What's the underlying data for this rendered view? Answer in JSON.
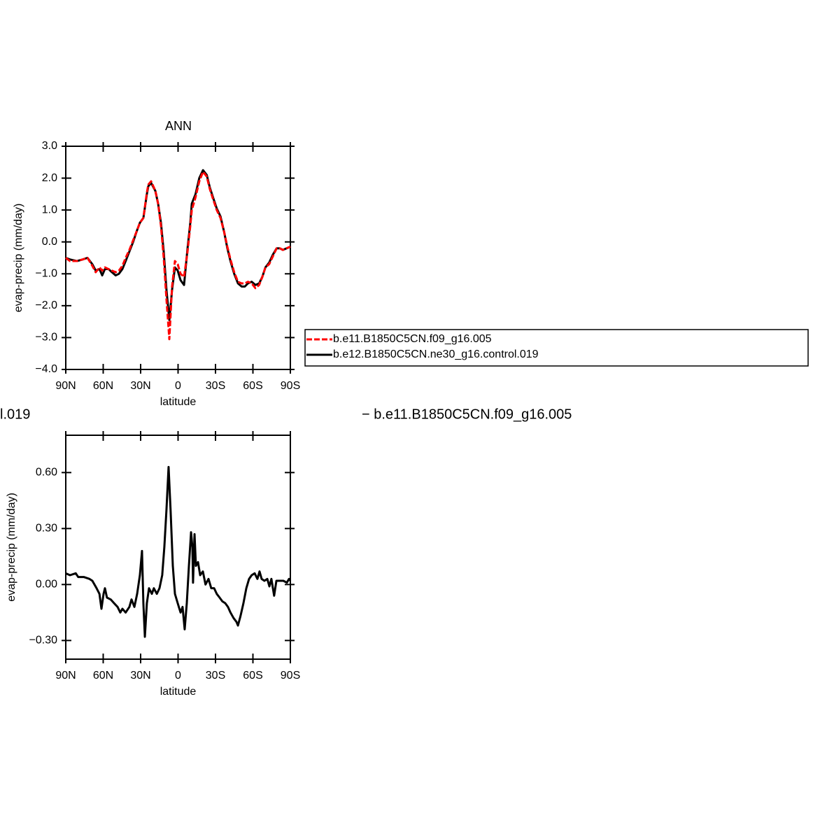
{
  "chart_data": [
    {
      "type": "line",
      "title": "ANN",
      "xlabel": "latitude",
      "ylabel": "evap-precip (mm/day)",
      "xlim": [
        90,
        -90
      ],
      "xticks": [
        {
          "value": 90,
          "label": "90N"
        },
        {
          "value": 60,
          "label": "60N"
        },
        {
          "value": 30,
          "label": "30N"
        },
        0,
        {
          "value": -30,
          "label": "30S"
        },
        {
          "value": -60,
          "label": "60S"
        },
        {
          "value": -90,
          "label": "90S"
        }
      ],
      "ylim": [
        -4,
        3
      ],
      "yticks": [
        {
          "value": 3,
          "label": "3.0"
        },
        {
          "value": 2,
          "label": "2.0"
        },
        {
          "value": 1,
          "label": "1.0"
        },
        {
          "value": 0,
          "label": "0.0"
        },
        {
          "value": -1,
          "label": "−1.0"
        },
        {
          "value": -2,
          "label": "−2.0"
        },
        {
          "value": -3,
          "label": "−3.0"
        },
        {
          "value": -4,
          "label": "−4.0"
        }
      ],
      "x": [
        90,
        86.6,
        81,
        76.5,
        72.6,
        68.7,
        66,
        63,
        60.8,
        58.6,
        55.8,
        53,
        50,
        47.4,
        44.6,
        42,
        39,
        36,
        33,
        30.6,
        27.8,
        25,
        23.8,
        21.6,
        18.2,
        16,
        13.7,
        11.5,
        9.3,
        7,
        4.8,
        2.5,
        0.3,
        -2,
        -4.8,
        -7.6,
        -9.8,
        -11,
        -14,
        -17,
        -20,
        -23,
        -25.5,
        -28,
        -31,
        -34,
        -37,
        -39.5,
        -42,
        -45,
        -48,
        -51,
        -53.5,
        -56,
        -59,
        -62,
        -65,
        -67.5,
        -70,
        -73,
        -76,
        -79,
        -81.5,
        -84,
        -87,
        -90
      ],
      "series": [
        {
          "name": "b.e11.B1850C5CN.f09_g16.005",
          "color": "#ff0000",
          "dash": "dashed",
          "values": [
            -0.5,
            -0.6,
            -0.6,
            -0.55,
            -0.5,
            -0.75,
            -0.95,
            -0.8,
            -0.9,
            -0.8,
            -0.85,
            -0.9,
            -0.95,
            -0.9,
            -0.75,
            -0.5,
            -0.25,
            0.05,
            0.35,
            0.6,
            0.75,
            1.55,
            1.8,
            1.9,
            1.6,
            1.2,
            0.5,
            -0.5,
            -1.8,
            -3.05,
            -1.4,
            -0.6,
            -0.7,
            -1.0,
            -1.1,
            -0.3,
            0.5,
            1.0,
            1.4,
            1.9,
            2.2,
            2.05,
            1.65,
            1.35,
            1.0,
            0.75,
            0.3,
            -0.15,
            -0.55,
            -0.95,
            -1.25,
            -1.3,
            -1.3,
            -1.25,
            -1.3,
            -1.45,
            -1.35,
            -1.1,
            -0.8,
            -0.7,
            -0.45,
            -0.2,
            -0.2,
            -0.25,
            -0.2,
            -0.15
          ]
        },
        {
          "name": "b.e12.B1850C5CN.ne30_g16.control.019",
          "color": "#000000",
          "values": [
            -0.5,
            -0.55,
            -0.6,
            -0.55,
            -0.5,
            -0.7,
            -0.9,
            -0.85,
            -1.05,
            -0.85,
            -0.85,
            -0.95,
            -1.05,
            -1.0,
            -0.85,
            -0.6,
            -0.3,
            0.0,
            0.35,
            0.6,
            0.75,
            1.5,
            1.75,
            1.85,
            1.6,
            1.2,
            0.6,
            -0.3,
            -1.5,
            -2.45,
            -1.5,
            -0.8,
            -0.9,
            -1.2,
            -1.35,
            -0.2,
            0.6,
            1.2,
            1.5,
            2.0,
            2.25,
            2.1,
            1.7,
            1.4,
            1.05,
            0.8,
            0.3,
            -0.2,
            -0.6,
            -1.0,
            -1.3,
            -1.4,
            -1.4,
            -1.3,
            -1.25,
            -1.35,
            -1.3,
            -1.1,
            -0.8,
            -0.65,
            -0.4,
            -0.2,
            -0.2,
            -0.25,
            -0.2,
            -0.15
          ]
        }
      ]
    },
    {
      "type": "line",
      "xlabel": "latitude",
      "ylabel": "evap-precip (mm/day)",
      "annotations": [
        "l.019",
        "− b.e11.B1850C5CN.f09_g16.005"
      ],
      "xlim": [
        90,
        -90
      ],
      "xticks": [
        {
          "value": 90,
          "label": "90N"
        },
        {
          "value": 60,
          "label": "60N"
        },
        {
          "value": 30,
          "label": "30N"
        },
        0,
        {
          "value": -30,
          "label": "30S"
        },
        {
          "value": -60,
          "label": "60S"
        },
        {
          "value": -90,
          "label": "90S"
        }
      ],
      "ylim": [
        -0.4,
        0.8
      ],
      "yticks": [
        {
          "value": 0.6,
          "label": "0.60"
        },
        {
          "value": 0.3,
          "label": "0.30"
        },
        {
          "value": 0,
          "label": "0.00"
        },
        {
          "value": -0.3,
          "label": "−0.30"
        }
      ],
      "x": [
        90,
        86.6,
        82,
        80,
        75.4,
        71,
        68.7,
        65.3,
        63,
        61.4,
        59.7,
        58.6,
        57,
        54,
        51.3,
        48.5,
        46.3,
        44.6,
        42,
        39,
        37.3,
        35,
        32.8,
        30.6,
        28.9,
        27.8,
        26.6,
        25,
        23.3,
        21,
        19.4,
        17,
        14.9,
        12.7,
        11,
        9.3,
        7.6,
        6,
        4.2,
        2.5,
        0.3,
        -2,
        -3.6,
        -5.3,
        -7,
        -8.7,
        -10.4,
        -11.5,
        -12,
        -13.2,
        -14.3,
        -16,
        -17.7,
        -19.9,
        -22,
        -24.4,
        -26.6,
        -28.9,
        -31,
        -33.3,
        -35.5,
        -37.8,
        -40,
        -42,
        -44.5,
        -46.8,
        -48,
        -50,
        -52.4,
        -54.7,
        -56.9,
        -59,
        -61.4,
        -63.6,
        -65.3,
        -67,
        -69.2,
        -71.5,
        -73.2,
        -74.8,
        -77,
        -78.8,
        -81.6,
        -84.4,
        -87.2,
        -88.9,
        -90
      ],
      "series": [
        {
          "color": "#000000",
          "values": [
            0.06,
            0.05,
            0.06,
            0.04,
            0.04,
            0.03,
            0.02,
            -0.02,
            -0.05,
            -0.13,
            -0.05,
            -0.02,
            -0.07,
            -0.08,
            -0.1,
            -0.12,
            -0.15,
            -0.13,
            -0.15,
            -0.12,
            -0.08,
            -0.12,
            -0.05,
            0.05,
            0.18,
            -0.1,
            -0.28,
            -0.1,
            -0.02,
            -0.05,
            -0.02,
            -0.05,
            -0.02,
            0.05,
            0.2,
            0.4,
            0.63,
            0.4,
            0.1,
            -0.05,
            -0.1,
            -0.15,
            -0.12,
            -0.24,
            -0.1,
            0.1,
            0.28,
            0.2,
            0.01,
            0.27,
            0.1,
            0.12,
            0.05,
            0.07,
            0.0,
            0.03,
            -0.02,
            -0.02,
            -0.05,
            -0.07,
            -0.09,
            -0.1,
            -0.12,
            -0.15,
            -0.18,
            -0.2,
            -0.22,
            -0.17,
            -0.1,
            -0.02,
            0.03,
            0.05,
            0.06,
            0.03,
            0.07,
            0.03,
            0.02,
            0.03,
            -0.01,
            0.03,
            -0.06,
            0.02,
            0.02,
            0.02,
            0.01,
            0.03,
            0.02
          ]
        }
      ]
    }
  ]
}
